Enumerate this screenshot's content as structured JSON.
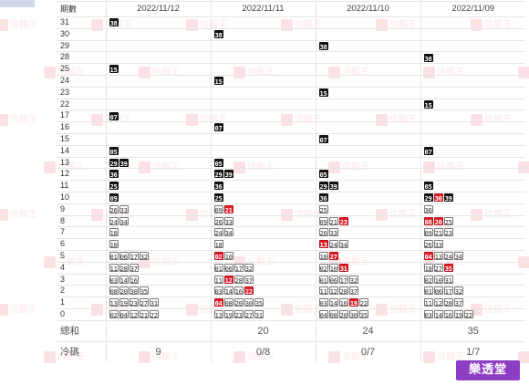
{
  "header": {
    "label": "期數",
    "dates": [
      "2022/11/12",
      "2022/11/11",
      "2022/11/10",
      "2022/11/09"
    ]
  },
  "rows": [
    {
      "label": "31",
      "cells": [
        [
          {
            "n": "38",
            "s": "hot"
          }
        ],
        [],
        [],
        []
      ]
    },
    {
      "label": "30",
      "cells": [
        [],
        [
          {
            "n": "38",
            "s": "hot"
          }
        ],
        [],
        []
      ]
    },
    {
      "label": "29",
      "cells": [
        [],
        [],
        [
          {
            "n": "38",
            "s": "hot"
          }
        ],
        []
      ]
    },
    {
      "label": "28",
      "cells": [
        [],
        [],
        [],
        [
          {
            "n": "38",
            "s": "hot"
          }
        ]
      ]
    },
    {
      "label": "25",
      "cells": [
        [
          {
            "n": "15",
            "s": "hot"
          }
        ],
        [],
        [],
        []
      ]
    },
    {
      "label": "24",
      "cells": [
        [],
        [
          {
            "n": "15",
            "s": "hot"
          }
        ],
        [],
        []
      ]
    },
    {
      "label": "23",
      "cells": [
        [],
        [],
        [
          {
            "n": "15",
            "s": "hot"
          }
        ],
        []
      ]
    },
    {
      "label": "22",
      "cells": [
        [],
        [],
        [],
        [
          {
            "n": "15",
            "s": "hot"
          }
        ]
      ]
    },
    {
      "label": "17",
      "cells": [
        [
          {
            "n": "07",
            "s": "hot"
          }
        ],
        [],
        [],
        []
      ]
    },
    {
      "label": "16",
      "cells": [
        [],
        [
          {
            "n": "07",
            "s": "hot"
          }
        ],
        [],
        []
      ]
    },
    {
      "label": "15",
      "cells": [
        [],
        [],
        [
          {
            "n": "07",
            "s": "hot"
          }
        ],
        []
      ]
    },
    {
      "label": "14",
      "cells": [
        [
          {
            "n": "05",
            "s": "hot"
          }
        ],
        [],
        [],
        [
          {
            "n": "07",
            "s": "hot"
          }
        ]
      ]
    },
    {
      "label": "13",
      "cells": [
        [
          {
            "n": "29",
            "s": "hot"
          },
          {
            "n": "39",
            "s": "hot"
          }
        ],
        [
          {
            "n": "05",
            "s": "hot"
          }
        ],
        [],
        []
      ]
    },
    {
      "label": "12",
      "cells": [
        [
          {
            "n": "36",
            "s": "hot"
          }
        ],
        [
          {
            "n": "29",
            "s": "hot"
          },
          {
            "n": "39",
            "s": "hot"
          }
        ],
        [
          {
            "n": "05",
            "s": "hot"
          }
        ],
        []
      ]
    },
    {
      "label": "11",
      "cells": [
        [
          {
            "n": "25",
            "s": "hot"
          }
        ],
        [
          {
            "n": "36",
            "s": "hot"
          }
        ],
        [
          {
            "n": "29",
            "s": "hot"
          },
          {
            "n": "39",
            "s": "hot"
          }
        ],
        [
          {
            "n": "05",
            "s": "hot"
          }
        ]
      ]
    },
    {
      "label": "10",
      "cells": [
        [
          {
            "n": "09",
            "s": "hot"
          }
        ],
        [
          {
            "n": "25",
            "s": "hot"
          }
        ],
        [
          {
            "n": "36",
            "s": "hot"
          }
        ],
        [
          {
            "n": "29",
            "s": "hot"
          },
          {
            "n": "30",
            "s": "red"
          },
          {
            "n": "39",
            "s": "hot"
          }
        ]
      ]
    },
    {
      "label": "9",
      "cells": [
        [
          {
            "n": "26",
            "s": "cold"
          },
          {
            "n": "33",
            "s": "cold"
          }
        ],
        [
          {
            "n": "09",
            "s": "cold"
          },
          {
            "n": "21",
            "s": "red"
          }
        ],
        [
          {
            "n": "25",
            "s": "cold"
          }
        ],
        [
          {
            "n": "36",
            "s": "cold"
          }
        ]
      ]
    },
    {
      "label": "8",
      "cells": [
        [
          {
            "n": "24",
            "s": "cold"
          },
          {
            "n": "34",
            "s": "cold"
          }
        ],
        [
          {
            "n": "26",
            "s": "cold"
          },
          {
            "n": "33",
            "s": "cold"
          }
        ],
        [
          {
            "n": "09",
            "s": "cold"
          },
          {
            "n": "21",
            "s": "cold"
          },
          {
            "n": "23",
            "s": "red"
          }
        ],
        [
          {
            "n": "08",
            "s": "red"
          },
          {
            "n": "20",
            "s": "red"
          },
          {
            "n": "25",
            "s": "cold"
          }
        ]
      ]
    },
    {
      "label": "7",
      "cells": [
        [
          {
            "n": "18",
            "s": "cold"
          }
        ],
        [
          {
            "n": "24",
            "s": "cold"
          },
          {
            "n": "34",
            "s": "cold"
          }
        ],
        [
          {
            "n": "26",
            "s": "cold"
          },
          {
            "n": "33",
            "s": "cold"
          }
        ],
        [
          {
            "n": "09",
            "s": "cold"
          },
          {
            "n": "21",
            "s": "cold"
          },
          {
            "n": "23",
            "s": "cold"
          }
        ]
      ]
    },
    {
      "label": "6",
      "cells": [
        [
          {
            "n": "10",
            "s": "cold"
          }
        ],
        [
          {
            "n": "18",
            "s": "cold"
          }
        ],
        [
          {
            "n": "13",
            "s": "red"
          },
          {
            "n": "24",
            "s": "cold"
          },
          {
            "n": "34",
            "s": "cold"
          }
        ],
        [
          {
            "n": "26",
            "s": "cold"
          },
          {
            "n": "33",
            "s": "cold"
          }
        ]
      ]
    },
    {
      "label": "5",
      "cells": [
        [
          {
            "n": "01",
            "s": "cold"
          },
          {
            "n": "06",
            "s": "cold"
          },
          {
            "n": "17",
            "s": "cold"
          },
          {
            "n": "32",
            "s": "cold"
          }
        ],
        [
          {
            "n": "02",
            "s": "red"
          },
          {
            "n": "10",
            "s": "cold"
          }
        ],
        [
          {
            "n": "18",
            "s": "cold"
          },
          {
            "n": "27",
            "s": "red"
          }
        ],
        [
          {
            "n": "04",
            "s": "red"
          },
          {
            "n": "13",
            "s": "cold"
          },
          {
            "n": "24",
            "s": "cold"
          },
          {
            "n": "34",
            "s": "cold"
          }
        ]
      ]
    },
    {
      "label": "4",
      "cells": [
        [
          {
            "n": "11",
            "s": "cold"
          },
          {
            "n": "28",
            "s": "cold"
          },
          {
            "n": "37",
            "s": "cold"
          }
        ],
        [
          {
            "n": "01",
            "s": "cold"
          },
          {
            "n": "06",
            "s": "cold"
          },
          {
            "n": "17",
            "s": "cold"
          },
          {
            "n": "32",
            "s": "cold"
          }
        ],
        [
          {
            "n": "02",
            "s": "cold"
          },
          {
            "n": "10",
            "s": "cold"
          },
          {
            "n": "31",
            "s": "red"
          }
        ],
        [
          {
            "n": "18",
            "s": "cold"
          },
          {
            "n": "27",
            "s": "cold"
          },
          {
            "n": "35",
            "s": "red"
          }
        ]
      ]
    },
    {
      "label": "3",
      "cells": [
        [
          {
            "n": "03",
            "s": "cold"
          },
          {
            "n": "14",
            "s": "cold"
          },
          {
            "n": "16",
            "s": "cold"
          }
        ],
        [
          {
            "n": "11",
            "s": "cold"
          },
          {
            "n": "12",
            "s": "red"
          },
          {
            "n": "28",
            "s": "cold"
          },
          {
            "n": "37",
            "s": "cold"
          }
        ],
        [
          {
            "n": "01",
            "s": "cold"
          },
          {
            "n": "06",
            "s": "cold"
          },
          {
            "n": "17",
            "s": "cold"
          },
          {
            "n": "32",
            "s": "cold"
          }
        ],
        [
          {
            "n": "02",
            "s": "cold"
          },
          {
            "n": "10",
            "s": "cold"
          },
          {
            "n": "31",
            "s": "cold"
          }
        ]
      ]
    },
    {
      "label": "2",
      "cells": [
        [
          {
            "n": "08",
            "s": "cold"
          },
          {
            "n": "20",
            "s": "cold"
          },
          {
            "n": "30",
            "s": "cold"
          },
          {
            "n": "35",
            "s": "cold"
          }
        ],
        [
          {
            "n": "03",
            "s": "cold"
          },
          {
            "n": "14",
            "s": "cold"
          },
          {
            "n": "16",
            "s": "cold"
          },
          {
            "n": "22",
            "s": "red"
          }
        ],
        [
          {
            "n": "11",
            "s": "cold"
          },
          {
            "n": "12",
            "s": "cold"
          },
          {
            "n": "28",
            "s": "cold"
          },
          {
            "n": "37",
            "s": "cold"
          }
        ],
        [
          {
            "n": "01",
            "s": "cold"
          },
          {
            "n": "06",
            "s": "cold"
          },
          {
            "n": "17",
            "s": "cold"
          },
          {
            "n": "32",
            "s": "cold"
          }
        ]
      ]
    },
    {
      "label": "1",
      "cells": [
        [
          {
            "n": "13",
            "s": "cold"
          },
          {
            "n": "19",
            "s": "cold"
          },
          {
            "n": "23",
            "s": "cold"
          },
          {
            "n": "27",
            "s": "cold"
          },
          {
            "n": "31",
            "s": "cold"
          }
        ],
        [
          {
            "n": "04",
            "s": "red"
          },
          {
            "n": "08",
            "s": "cold"
          },
          {
            "n": "20",
            "s": "cold"
          },
          {
            "n": "30",
            "s": "cold"
          },
          {
            "n": "35",
            "s": "cold"
          }
        ],
        [
          {
            "n": "03",
            "s": "cold"
          },
          {
            "n": "14",
            "s": "cold"
          },
          {
            "n": "16",
            "s": "cold"
          },
          {
            "n": "19",
            "s": "red"
          },
          {
            "n": "22",
            "s": "cold"
          }
        ],
        [
          {
            "n": "11",
            "s": "cold"
          },
          {
            "n": "12",
            "s": "cold"
          },
          {
            "n": "28",
            "s": "cold"
          },
          {
            "n": "37",
            "s": "cold"
          }
        ]
      ]
    },
    {
      "label": "0",
      "cells": [
        [
          {
            "n": "02",
            "s": "cold"
          },
          {
            "n": "04",
            "s": "cold"
          },
          {
            "n": "12",
            "s": "cold"
          },
          {
            "n": "21",
            "s": "cold"
          },
          {
            "n": "22",
            "s": "cold"
          }
        ],
        [
          {
            "n": "13",
            "s": "cold"
          },
          {
            "n": "19",
            "s": "cold"
          },
          {
            "n": "23",
            "s": "cold"
          },
          {
            "n": "27",
            "s": "cold"
          },
          {
            "n": "31",
            "s": "cold"
          }
        ],
        [
          {
            "n": "04",
            "s": "cold"
          },
          {
            "n": "08",
            "s": "cold"
          },
          {
            "n": "20",
            "s": "cold"
          },
          {
            "n": "30",
            "s": "cold"
          },
          {
            "n": "35",
            "s": "cold"
          }
        ],
        [
          {
            "n": "03",
            "s": "cold"
          },
          {
            "n": "14",
            "s": "cold"
          },
          {
            "n": "16",
            "s": "cold"
          },
          {
            "n": "19",
            "s": "cold"
          },
          {
            "n": "22",
            "s": "cold"
          }
        ]
      ]
    }
  ],
  "footer": [
    {
      "label": "總和",
      "values": [
        "",
        "20",
        "24",
        "35"
      ]
    },
    {
      "label": "冷碼",
      "values": [
        "9",
        "0/8",
        "0/7",
        "1/7"
      ]
    }
  ],
  "brand": "樂透堂",
  "watermark": "信鶴王",
  "colors": {
    "hot_bg": "#111111",
    "hit_red": "#e11d2a",
    "brand_purple": "#8e3ec4",
    "watermark": "#e64650"
  }
}
